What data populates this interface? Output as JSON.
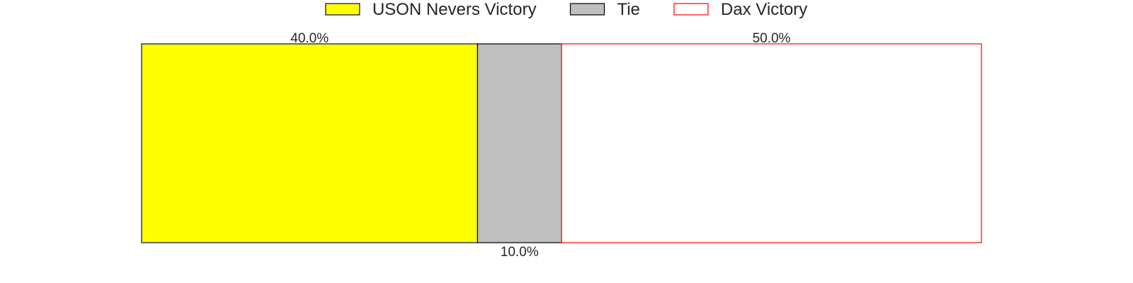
{
  "chart_data": {
    "type": "bar",
    "orientation": "horizontal",
    "stacked": true,
    "normalized": true,
    "categories": [
      ""
    ],
    "series": [
      {
        "name": "USON Nevers Victory",
        "values": [
          40.0
        ],
        "label": "40.0%",
        "fill": "#ffff00",
        "stroke": "#000080",
        "label_position": "above"
      },
      {
        "name": "Tie",
        "values": [
          10.0
        ],
        "label": "10.0%",
        "fill": "#bfbfbf",
        "stroke": "#000000",
        "label_position": "below"
      },
      {
        "name": "Dax Victory",
        "values": [
          50.0
        ],
        "label": "50.0%",
        "fill": "#ffffff",
        "stroke": "#ff0000",
        "label_position": "above"
      }
    ],
    "xlim": [
      0,
      100
    ],
    "axes_visible": false,
    "grid": false,
    "legend": {
      "position": "top-center",
      "orientation": "horizontal"
    }
  }
}
